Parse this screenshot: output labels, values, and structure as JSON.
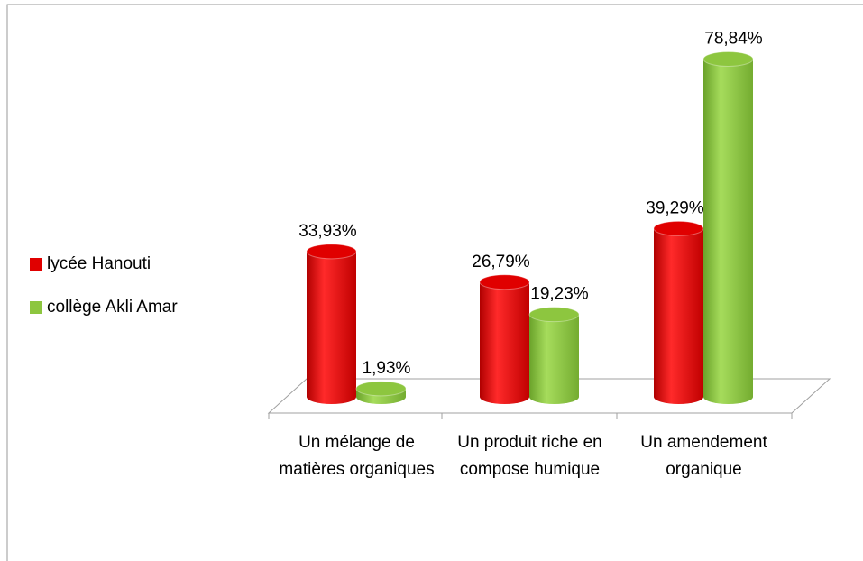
{
  "chart_data": {
    "type": "bar",
    "categories": [
      "Un mélange de matières organiques",
      "Un produit riche en compose humique",
      "Un amendement organique"
    ],
    "series": [
      {
        "name": "lycée Hanouti",
        "color": "#e00000",
        "values": [
          33.93,
          26.79,
          39.29
        ],
        "value_labels": [
          "33,93%",
          "26,79%",
          "39,29%"
        ]
      },
      {
        "name": "collège Akli Amar",
        "color": "#8dc63f",
        "values": [
          1.93,
          19.23,
          78.84
        ],
        "value_labels": [
          "1,93%",
          "19,23%",
          "78,84%"
        ]
      }
    ],
    "legend": "left"
  }
}
